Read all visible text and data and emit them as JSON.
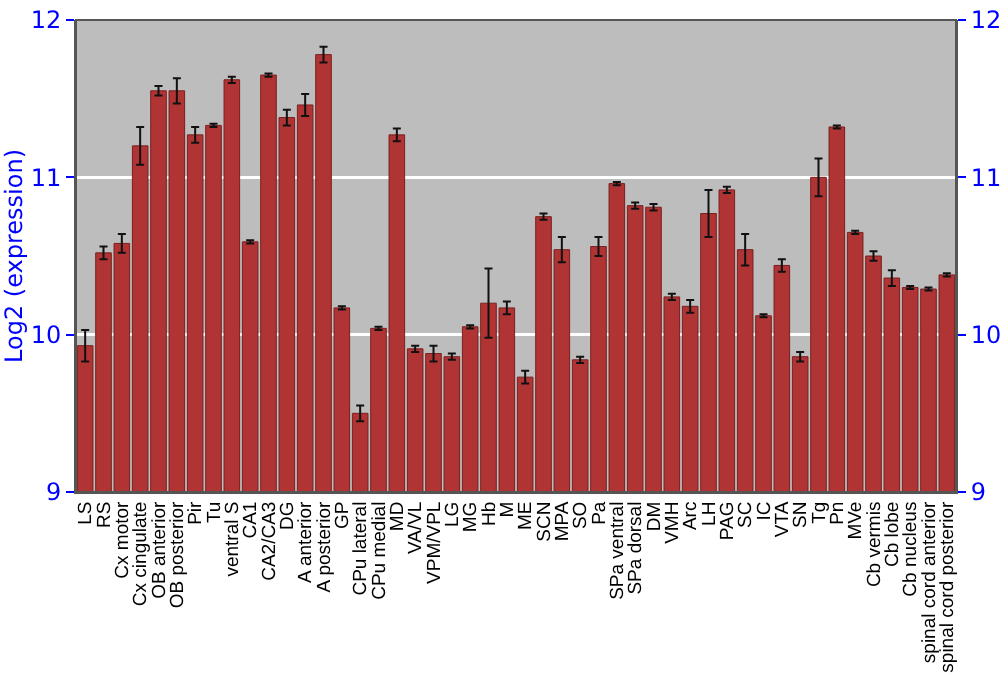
{
  "chart_data": {
    "type": "bar",
    "ylabel": "Log2 (expression)",
    "categories": [
      "LS",
      "RS",
      "Cx motor",
      "Cx cingulate",
      "OB anterior",
      "OB posterior",
      "Pir",
      "Tu",
      "ventral S",
      "CA1",
      "CA2/CA3",
      "DG",
      "A anterior",
      "A posterior",
      "GP",
      "CPu lateral",
      "CPu medial",
      "MD",
      "VA/VL",
      "VPM/VPL",
      "LG",
      "MG",
      "Hb",
      "M",
      "ME",
      "SCN",
      "MPA",
      "SO",
      "Pa",
      "SPa ventral",
      "SPa dorsal",
      "DM",
      "VMH",
      "Arc",
      "LH",
      "PAG",
      "SC",
      "IC",
      "VTA",
      "SN",
      "Tg",
      "Pn",
      "MVe",
      "Cb vermis",
      "Cb lobe",
      "Cb nucleus",
      "spinal cord anterior",
      "spinal cord posterior"
    ],
    "values": [
      9.93,
      10.52,
      10.58,
      11.2,
      11.55,
      11.55,
      11.27,
      11.33,
      11.62,
      10.59,
      11.65,
      11.38,
      11.46,
      11.78,
      10.17,
      9.5,
      10.04,
      11.27,
      9.91,
      9.88,
      9.86,
      10.05,
      10.2,
      10.17,
      9.73,
      10.75,
      10.54,
      9.84,
      10.56,
      10.96,
      10.82,
      10.81,
      10.24,
      10.18,
      10.77,
      10.92,
      10.54,
      10.12,
      10.44,
      9.86,
      11.0,
      11.32,
      10.65,
      10.5,
      10.36,
      10.3,
      10.29,
      10.38
    ],
    "errors": [
      0.1,
      0.04,
      0.06,
      0.12,
      0.03,
      0.08,
      0.05,
      0.01,
      0.02,
      0.01,
      0.01,
      0.05,
      0.07,
      0.05,
      0.01,
      0.05,
      0.01,
      0.04,
      0.02,
      0.05,
      0.02,
      0.01,
      0.22,
      0.04,
      0.04,
      0.02,
      0.08,
      0.02,
      0.06,
      0.01,
      0.02,
      0.02,
      0.02,
      0.04,
      0.15,
      0.02,
      0.1,
      0.01,
      0.04,
      0.03,
      0.12,
      0.01,
      0.01,
      0.03,
      0.05,
      0.01,
      0.01,
      0.01
    ],
    "color": "#b03434",
    "ylim": [
      9,
      12
    ],
    "yticks": [
      9,
      10,
      11,
      12
    ],
    "y2lim": [
      9,
      12
    ],
    "y2ticks": [
      9,
      10,
      11,
      12
    ],
    "grid": "y"
  }
}
